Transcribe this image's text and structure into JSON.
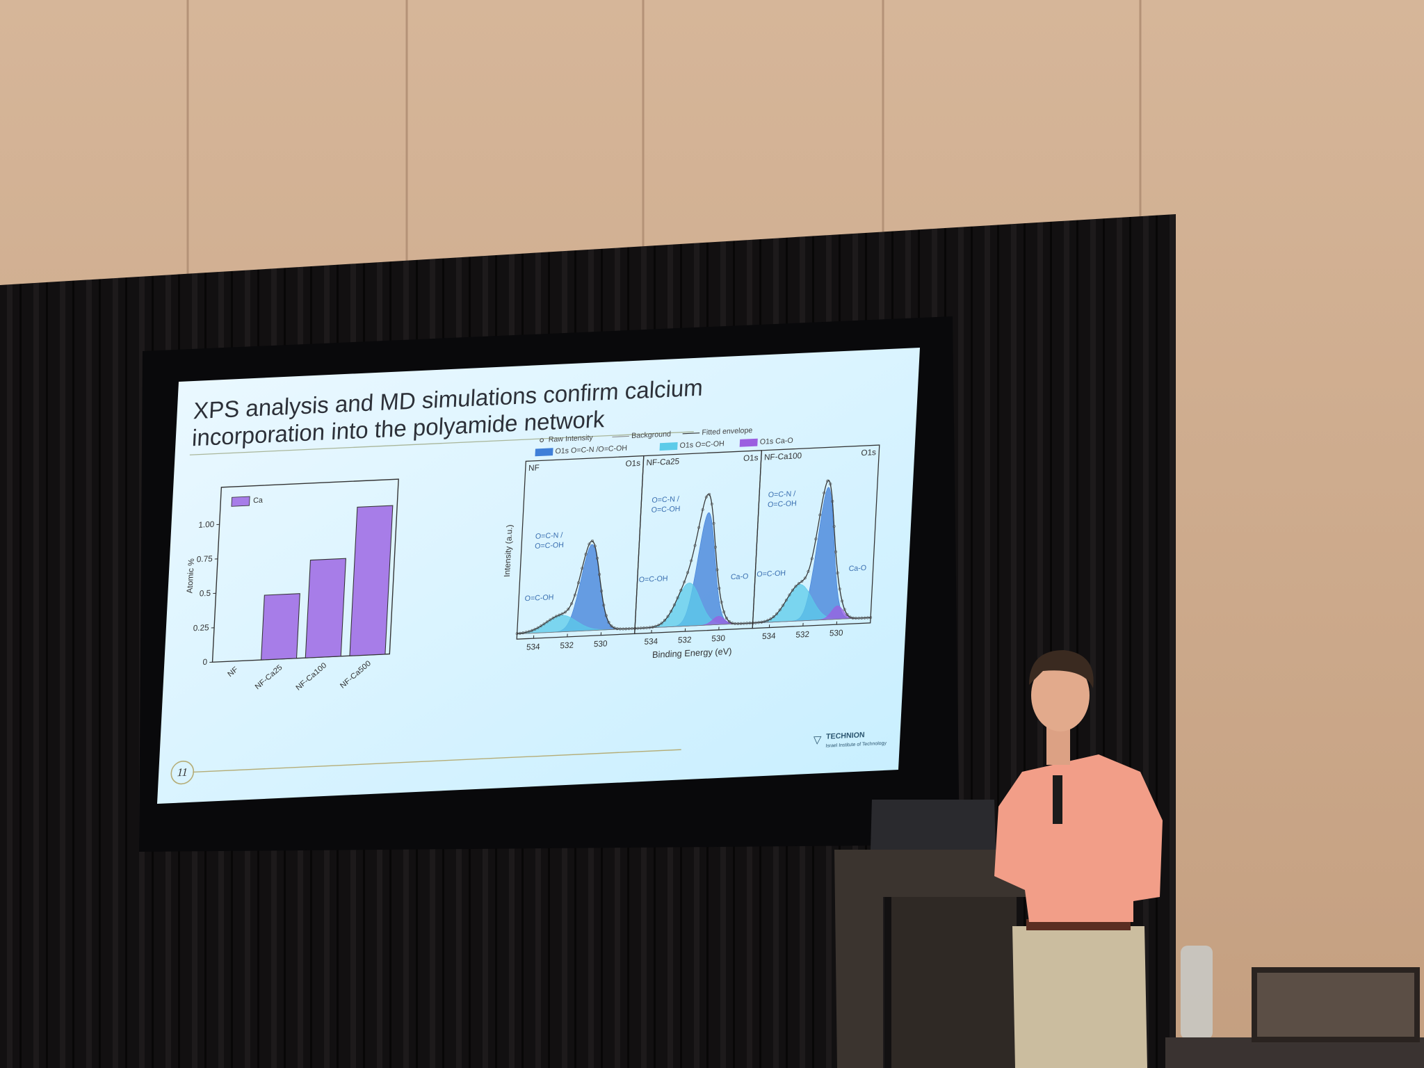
{
  "slide": {
    "title_lines": [
      "XPS analysis and MD simulations confirm calcium",
      "incorporation into the polyamide network"
    ],
    "page_number": 11,
    "bar_chart": {
      "type": "bar",
      "ylabel": "Atomic %",
      "legend": "Ca",
      "color": "#a77de8",
      "categories": [
        "NF",
        "NF-Ca25",
        "NF-Ca100",
        "NF-Ca500"
      ],
      "values": [
        0,
        0.47,
        0.71,
        1.08
      ],
      "ylim": [
        0,
        1.27
      ],
      "yticks": [
        0,
        0.25,
        0.5,
        0.75,
        {
          "value": 1,
          "label": "1.00"
        }
      ]
    },
    "xps": {
      "legend": [
        "Raw Intensity",
        "Background",
        "Fitted envelope",
        "O1s O=C-N /O=C-OH",
        "O1s O=C-OH",
        "O1s Ca-O"
      ],
      "component_colors": [
        "#3f7fd8",
        "#5ccbe9",
        "#9b5fe0"
      ],
      "ylabel": "Intensity (a.u.)",
      "xlabel": "Binding Energy (eV)",
      "xlim": [
        535,
        528
      ],
      "panels": [
        {
          "name": "NF",
          "core": "O1s",
          "xticks": [
            534,
            532,
            530
          ],
          "annotations": [
            [
              "O=C-N /",
              "O=C-OH"
            ],
            [
              "O=C-OH"
            ]
          ],
          "components": [
            {
              "center": 530.8,
              "height": 0.52,
              "sigma": 0.55
            },
            {
              "center": 532.4,
              "height": 0.1,
              "sigma": 0.9
            }
          ]
        },
        {
          "name": "NF-Ca25",
          "core": "O1s",
          "xticks": [
            534,
            532,
            530
          ],
          "annotations": [
            [
              "O=C-N /",
              "O=C-OH"
            ],
            [
              "O=C-OH"
            ],
            [
              "Ca-O"
            ]
          ],
          "components": [
            {
              "center": 530.95,
              "height": 0.68,
              "sigma": 0.5
            },
            {
              "center": 531.9,
              "height": 0.26,
              "sigma": 0.7
            },
            {
              "center": 530.05,
              "height": 0.05,
              "sigma": 0.35
            }
          ]
        },
        {
          "name": "NF-Ca100",
          "core": "O1s",
          "xticks": [
            534,
            532,
            530
          ],
          "annotations": [
            [
              "O=C-N /",
              "O=C-OH"
            ],
            [
              "O=C-OH"
            ],
            [
              "Ca-O"
            ]
          ],
          "components": [
            {
              "center": 530.9,
              "height": 0.8,
              "sigma": 0.48
            },
            {
              "center": 532.3,
              "height": 0.22,
              "sigma": 0.75
            },
            {
              "center": 530.0,
              "height": 0.08,
              "sigma": 0.35
            }
          ]
        }
      ]
    },
    "logo": {
      "name": "TECHNION",
      "subtitle": "Israel Institute of Technology"
    }
  }
}
